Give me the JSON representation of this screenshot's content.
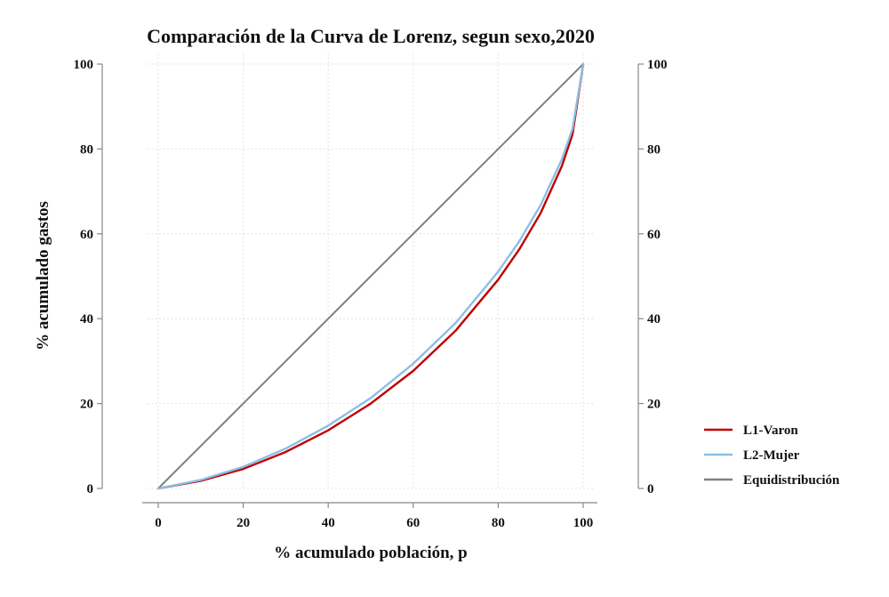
{
  "chart_data": {
    "type": "line",
    "title": "Comparación de la Curva de Lorenz, segun sexo,2020",
    "xlabel": "% acumulado población, p",
    "ylabel": "% acumulado gastos",
    "xlim": [
      0,
      100
    ],
    "ylim": [
      0,
      100
    ],
    "x_ticks": [
      "0",
      "20",
      "40",
      "60",
      "80",
      "100"
    ],
    "y_ticks": [
      "0",
      "20",
      "40",
      "60",
      "80",
      "100"
    ],
    "y2_ticks": [
      "0",
      "20",
      "40",
      "60",
      "80",
      "100"
    ],
    "grid": true,
    "legend_position": "right",
    "x": [
      0,
      10,
      20,
      30,
      40,
      50,
      60,
      70,
      80,
      85,
      90,
      95,
      97.5,
      100
    ],
    "series": [
      {
        "name": "L1-Varon",
        "color": "#c00000",
        "values": [
          0,
          1.8,
          4.6,
          8.6,
          13.7,
          20.0,
          27.7,
          37.2,
          49.2,
          56.4,
          64.9,
          76.0,
          83.5,
          100
        ]
      },
      {
        "name": "L2-Mujer",
        "color": "#8bbfe3",
        "values": [
          0,
          2.0,
          5.1,
          9.4,
          14.8,
          21.3,
          29.4,
          39.0,
          51.1,
          58.3,
          66.8,
          77.6,
          84.8,
          100
        ]
      },
      {
        "name": "Equidistribución",
        "color": "#808080",
        "values": [
          0,
          10,
          20,
          30,
          40,
          50,
          60,
          70,
          80,
          85,
          90,
          95,
          97.5,
          100
        ]
      }
    ]
  }
}
